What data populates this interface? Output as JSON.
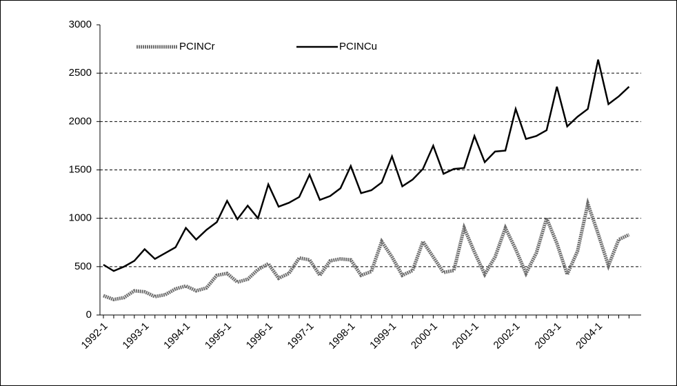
{
  "chart_data": {
    "type": "line",
    "categories": [
      "1992-1",
      null,
      null,
      null,
      "1993-1",
      null,
      null,
      null,
      "1994-1",
      null,
      null,
      null,
      "1995-1",
      null,
      null,
      null,
      "1996-1",
      null,
      null,
      null,
      "1997-1",
      null,
      null,
      null,
      "1998-1",
      null,
      null,
      null,
      "1999-1",
      null,
      null,
      null,
      "2000-1",
      null,
      null,
      null,
      "2001-1",
      null,
      null,
      null,
      "2002-1",
      null,
      null,
      null,
      "2003-1",
      null,
      null,
      null,
      "2004-1",
      null,
      null,
      null
    ],
    "series": [
      {
        "name": "PCINCr",
        "color": "#6e6e6e",
        "values": [
          200,
          160,
          180,
          250,
          240,
          190,
          210,
          270,
          300,
          250,
          280,
          410,
          430,
          340,
          370,
          470,
          530,
          380,
          430,
          590,
          570,
          410,
          560,
          580,
          570,
          410,
          450,
          760,
          600,
          410,
          460,
          760,
          600,
          440,
          460,
          900,
          650,
          420,
          600,
          900,
          680,
          430,
          640,
          1000,
          740,
          420,
          660,
          1150,
          840,
          510,
          780,
          830
        ]
      },
      {
        "name": "PCINCu",
        "color": "#000000",
        "values": [
          520,
          455,
          500,
          560,
          680,
          580,
          640,
          700,
          900,
          780,
          880,
          960,
          1180,
          990,
          1130,
          1000,
          1350,
          1120,
          1160,
          1220,
          1450,
          1190,
          1230,
          1310,
          1540,
          1260,
          1290,
          1370,
          1640,
          1330,
          1400,
          1510,
          1750,
          1460,
          1510,
          1520,
          1850,
          1580,
          1690,
          1700,
          2130,
          1820,
          1850,
          1910,
          2360,
          1950,
          2050,
          2130,
          2640,
          2180,
          2260,
          2360
        ]
      }
    ],
    "ylim": [
      0,
      3000
    ],
    "yticks": [
      0,
      500,
      1000,
      1500,
      2000,
      2500,
      3000
    ],
    "grid": true
  }
}
